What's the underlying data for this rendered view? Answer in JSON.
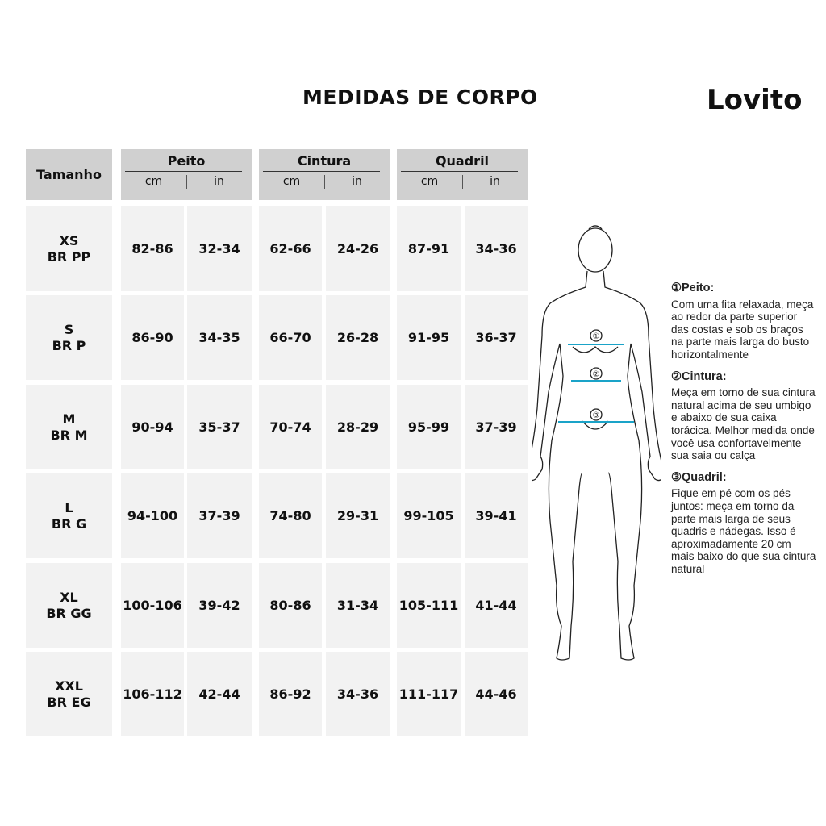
{
  "title": "MEDIDAS DE CORPO",
  "brand": "Lovito",
  "table": {
    "size_header": "Tamanho",
    "groups": [
      {
        "label": "Peito",
        "units": [
          "cm",
          "in"
        ]
      },
      {
        "label": "Cintura",
        "units": [
          "cm",
          "in"
        ]
      },
      {
        "label": "Quadril",
        "units": [
          "cm",
          "in"
        ]
      }
    ],
    "rows": [
      {
        "size": "XS",
        "br": "BR PP",
        "values": [
          "82-86",
          "32-34",
          "62-66",
          "24-26",
          "87-91",
          "34-36"
        ]
      },
      {
        "size": "S",
        "br": "BR P",
        "values": [
          "86-90",
          "34-35",
          "66-70",
          "26-28",
          "91-95",
          "36-37"
        ]
      },
      {
        "size": "M",
        "br": "BR M",
        "values": [
          "90-94",
          "35-37",
          "70-74",
          "28-29",
          "95-99",
          "37-39"
        ]
      },
      {
        "size": "L",
        "br": "BR G",
        "values": [
          "94-100",
          "37-39",
          "74-80",
          "29-31",
          "99-105",
          "39-41"
        ]
      },
      {
        "size": "XL",
        "br": "BR GG",
        "values": [
          "100-106",
          "39-42",
          "80-86",
          "31-34",
          "105-111",
          "41-44"
        ]
      },
      {
        "size": "XXL",
        "br": "BR EG",
        "values": [
          "106-112",
          "42-44",
          "86-92",
          "34-36",
          "111-117",
          "44-46"
        ]
      }
    ]
  },
  "figure": {
    "markers": [
      "①",
      "②",
      "③"
    ],
    "line_color": "#1aa3c8"
  },
  "instructions": [
    {
      "heading": "①Peito:",
      "text": "Com uma fita relaxada, meça ao redor da parte superior das costas e sob os braços na parte mais larga do busto horizontalmente"
    },
    {
      "heading": "②Cintura:",
      "text": "Meça em torno de sua cintura natural acima de seu umbigo e abaixo de sua caixa torácica. Melhor medida onde você usa confortavelmente sua saia ou calça"
    },
    {
      "heading": "③Quadril:",
      "text": "Fique em pé com os pés juntos: meça em torno da parte mais larga de seus quadris e nádegas. Isso é aproximadamente 20 cm mais baixo do que sua cintura natural"
    }
  ]
}
